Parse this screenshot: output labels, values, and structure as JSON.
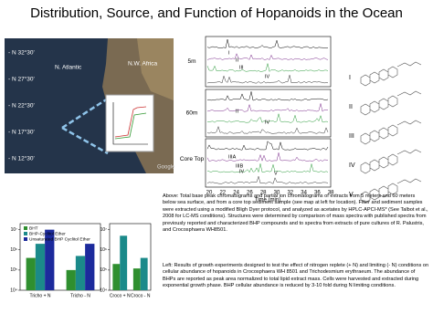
{
  "title": "Distribution, Source, and Function of Hopanoids in the Ocean",
  "map": {
    "latitudes": [
      "- N 32°30'",
      "- N 27°30'",
      "- N 22°30'",
      "- N 17°30'",
      "- N 12°30'"
    ],
    "labels": [
      "N. Atlantic",
      "N.W. Africa",
      "Google"
    ]
  },
  "chromatograms": {
    "panels": [
      "5m",
      "60m",
      "Core Top"
    ],
    "time_label": "Time (min)",
    "time_ticks": [
      "20",
      "22",
      "24",
      "26",
      "28",
      "30",
      "32",
      "34",
      "36",
      "38"
    ],
    "peaks": [
      "I",
      "II",
      "III",
      "IV",
      "II",
      "IV",
      "IIIA",
      "IIIB",
      "IV",
      "V"
    ]
  },
  "structures": [
    "I",
    "II",
    "III",
    "IV",
    "V"
  ],
  "caption_above": "Above: Total base peak chromatograms and partial ion chromatograms of extracts from 5 meters and 60 meters below sea surface, and from a core top sediment sample (see map at left for location). Filter and sediment samples were extracted using a modified Bligh Dyer protocol, and analyzed as acetates by HPLC-APCI-MS* (See Talbot et al., 2008 for LC-MS conditions). Structures were determined by comparison of mass spectra with published spectra from previously reported and characterized BHP compounds and to spectra from extracts of pure cultures of R. Palustris, and Crocosphaera WH8501.",
  "caption_left": "Left: Results of growth experiments designed to test the effect of nitrogen replete (+ N) and limiting (- N) conditions on cellular abundance of hopanoids in Crocosphaera WH 8501 and Trichodesmium erythraeum. The abundance of BHPs are reported as peak area normalized to total lipid extract mass. Cells were harvested and extracted during exponential growth phase. BHP cellular abundance is reduced by 3-10 fold during N limiting conditions.",
  "chart_data": [
    {
      "type": "bar",
      "log_scale": true,
      "categories": [
        "Tricho + N",
        "Tricho - N"
      ],
      "series": [
        {
          "name": "BHT",
          "color": "#2f8f2f",
          "values": [
            400000,
            100000
          ]
        },
        {
          "name": "BHP-Cyclitol Ether",
          "color": "#1b8a8a",
          "values": [
            2000000,
            500000
          ]
        },
        {
          "name": "Unsaturated BHP Cyclitol Ether",
          "color": "#1c2a9c",
          "values": [
            10000000,
            2000000
          ]
        }
      ],
      "ylim": [
        10000,
        20000000
      ],
      "yticks": [
        {
          "value": 10000,
          "label": "10⁴"
        },
        {
          "value": 100000,
          "label": "10⁵"
        },
        {
          "value": 1000000,
          "label": "10⁶"
        },
        {
          "value": 10000000,
          "label": "10⁷"
        }
      ]
    },
    {
      "type": "bar",
      "log_scale": true,
      "categories": [
        "Croco + N",
        "Croco - N"
      ],
      "series": [
        {
          "color": "#2f8f2f",
          "values": [
            200000,
            120000
          ]
        },
        {
          "color": "#1b8a8a",
          "values": [
            5000000,
            400000
          ]
        }
      ],
      "ylim": [
        10000,
        20000000
      ],
      "yticks": [
        {
          "value": 10000,
          "label": "10⁴"
        },
        {
          "value": 100000,
          "label": "10⁵"
        },
        {
          "value": 1000000,
          "label": "10⁶"
        },
        {
          "value": 10000000,
          "label": "10⁷"
        }
      ]
    }
  ]
}
